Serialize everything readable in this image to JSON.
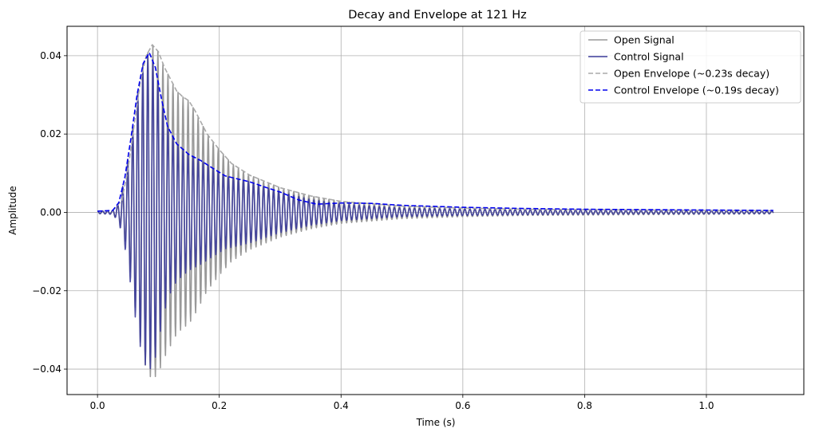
{
  "chart_data": {
    "type": "line",
    "title": "Decay and Envelope at 121 Hz",
    "xlabel": "Time (s)",
    "ylabel": "Amplitude",
    "xlim": [
      -0.05,
      1.16
    ],
    "ylim": [
      -0.0465,
      0.0475
    ],
    "xticks": [
      0.0,
      0.2,
      0.4,
      0.6,
      0.8,
      1.0
    ],
    "xtick_labels": [
      "0.0",
      "0.2",
      "0.4",
      "0.6",
      "0.8",
      "1.0"
    ],
    "yticks": [
      -0.04,
      -0.02,
      0.0,
      0.02,
      0.04
    ],
    "ytick_labels": [
      "−0.04",
      "−0.02",
      "0.00",
      "0.02",
      "0.04"
    ],
    "grid": true,
    "legend_position": "top-right",
    "signal_frequency_hz": 121,
    "series": [
      {
        "name": "Open Signal",
        "kind": "oscillation",
        "color": "#999999",
        "style": "solid",
        "duration": 1.11,
        "envelope": [
          [
            0.0,
            0.0003
          ],
          [
            0.025,
            0.0005
          ],
          [
            0.04,
            0.003
          ],
          [
            0.05,
            0.011
          ],
          [
            0.06,
            0.022
          ],
          [
            0.07,
            0.033
          ],
          [
            0.08,
            0.04
          ],
          [
            0.09,
            0.0428
          ],
          [
            0.1,
            0.041
          ],
          [
            0.11,
            0.037
          ],
          [
            0.12,
            0.034
          ],
          [
            0.13,
            0.031
          ],
          [
            0.14,
            0.0295
          ],
          [
            0.15,
            0.0285
          ],
          [
            0.16,
            0.026
          ],
          [
            0.18,
            0.02
          ],
          [
            0.2,
            0.016
          ],
          [
            0.22,
            0.0125
          ],
          [
            0.25,
            0.0095
          ],
          [
            0.3,
            0.0063
          ],
          [
            0.35,
            0.0042
          ],
          [
            0.4,
            0.0028
          ],
          [
            0.5,
            0.0016
          ],
          [
            0.6,
            0.0011
          ],
          [
            0.7,
            0.0008
          ],
          [
            0.8,
            0.0007
          ],
          [
            0.9,
            0.0006
          ],
          [
            1.0,
            0.0005
          ],
          [
            1.11,
            0.0004
          ]
        ]
      },
      {
        "name": "Control Signal",
        "kind": "oscillation",
        "color": "#3b3b9a",
        "style": "solid",
        "duration": 1.11,
        "envelope": [
          [
            0.0,
            0.0003
          ],
          [
            0.025,
            0.0005
          ],
          [
            0.035,
            0.0025
          ],
          [
            0.045,
            0.009
          ],
          [
            0.055,
            0.019
          ],
          [
            0.065,
            0.03
          ],
          [
            0.075,
            0.038
          ],
          [
            0.085,
            0.0405
          ],
          [
            0.095,
            0.037
          ],
          [
            0.105,
            0.029
          ],
          [
            0.115,
            0.022
          ],
          [
            0.13,
            0.0175
          ],
          [
            0.15,
            0.0148
          ],
          [
            0.17,
            0.0132
          ],
          [
            0.19,
            0.0112
          ],
          [
            0.21,
            0.0093
          ],
          [
            0.25,
            0.0078
          ],
          [
            0.28,
            0.0062
          ],
          [
            0.3,
            0.0052
          ],
          [
            0.35,
            0.0033
          ],
          [
            0.4,
            0.0021
          ],
          [
            0.5,
            0.0011
          ],
          [
            0.6,
            0.0008
          ],
          [
            0.7,
            0.0006
          ],
          [
            0.8,
            0.0005
          ],
          [
            0.9,
            0.0004
          ],
          [
            1.0,
            0.0004
          ],
          [
            1.11,
            0.0003
          ]
        ]
      },
      {
        "name": "Open Envelope (~0.23s decay)",
        "kind": "line",
        "color": "#aaaaaa",
        "style": "dashed",
        "points": [
          [
            0.0,
            0.0003
          ],
          [
            0.025,
            0.0005
          ],
          [
            0.04,
            0.003
          ],
          [
            0.05,
            0.011
          ],
          [
            0.06,
            0.022
          ],
          [
            0.07,
            0.033
          ],
          [
            0.08,
            0.04
          ],
          [
            0.09,
            0.0428
          ],
          [
            0.1,
            0.041
          ],
          [
            0.11,
            0.037
          ],
          [
            0.12,
            0.034
          ],
          [
            0.13,
            0.031
          ],
          [
            0.14,
            0.0295
          ],
          [
            0.15,
            0.0285
          ],
          [
            0.16,
            0.026
          ],
          [
            0.18,
            0.02
          ],
          [
            0.2,
            0.016
          ],
          [
            0.22,
            0.0125
          ],
          [
            0.25,
            0.0095
          ],
          [
            0.3,
            0.0063
          ],
          [
            0.35,
            0.0042
          ],
          [
            0.4,
            0.0028
          ],
          [
            0.5,
            0.0016
          ],
          [
            0.6,
            0.0011
          ],
          [
            0.7,
            0.0008
          ],
          [
            0.8,
            0.0007
          ],
          [
            0.9,
            0.0006
          ],
          [
            1.0,
            0.0005
          ],
          [
            1.11,
            0.0004
          ]
        ]
      },
      {
        "name": "Control Envelope (~0.19s decay)",
        "kind": "line",
        "color": "#0000ee",
        "style": "dashed",
        "points": [
          [
            0.0,
            0.0003
          ],
          [
            0.025,
            0.0005
          ],
          [
            0.035,
            0.0025
          ],
          [
            0.045,
            0.009
          ],
          [
            0.055,
            0.019
          ],
          [
            0.065,
            0.03
          ],
          [
            0.075,
            0.038
          ],
          [
            0.085,
            0.0408
          ],
          [
            0.095,
            0.037
          ],
          [
            0.105,
            0.029
          ],
          [
            0.115,
            0.022
          ],
          [
            0.13,
            0.0175
          ],
          [
            0.15,
            0.0148
          ],
          [
            0.17,
            0.0132
          ],
          [
            0.19,
            0.0112
          ],
          [
            0.21,
            0.0093
          ],
          [
            0.25,
            0.0078
          ],
          [
            0.28,
            0.0062
          ],
          [
            0.3,
            0.0052
          ],
          [
            0.33,
            0.0032
          ],
          [
            0.36,
            0.0021
          ],
          [
            0.4,
            0.0024
          ],
          [
            0.45,
            0.0023
          ],
          [
            0.5,
            0.0018
          ],
          [
            0.6,
            0.0013
          ],
          [
            0.7,
            0.001
          ],
          [
            0.8,
            0.0008
          ],
          [
            0.9,
            0.0007
          ],
          [
            1.0,
            0.0006
          ],
          [
            1.11,
            0.0005
          ]
        ]
      }
    ]
  }
}
